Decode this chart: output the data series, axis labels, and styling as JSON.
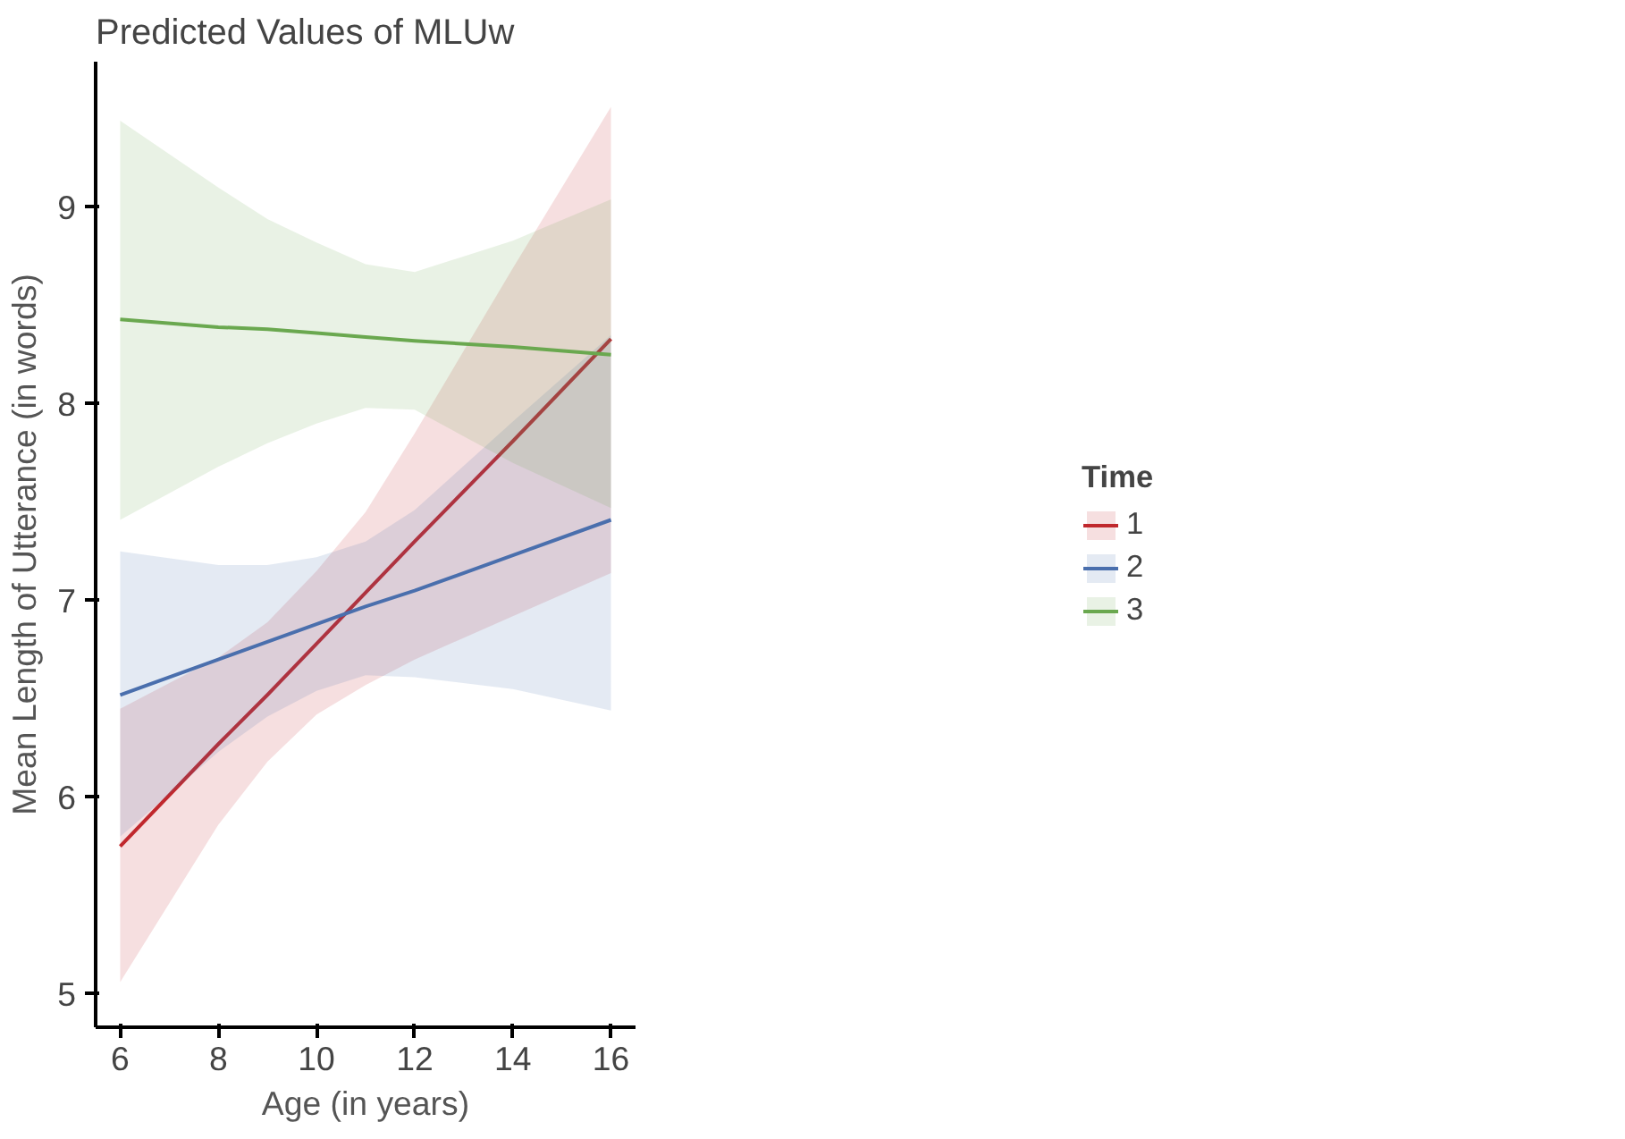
{
  "chart_data": {
    "type": "line",
    "title": "Predicted Values of MLUw",
    "xlabel": "Age (in years)",
    "ylabel": "Mean Length of Utterance (in words)",
    "legend_title": "Time",
    "legend": "right",
    "grid": false,
    "xlim": [
      5.5,
      16.5
    ],
    "ylim": [
      4.83,
      9.74
    ],
    "xticks": [
      6,
      8,
      10,
      12,
      14,
      16
    ],
    "yticks": [
      5,
      6,
      7,
      8,
      9
    ],
    "x": [
      6,
      8,
      9,
      10,
      11,
      12,
      14,
      16
    ],
    "series": [
      {
        "name": "1",
        "color": "#c0282d",
        "values": [
          5.75,
          6.27,
          6.52,
          6.78,
          7.04,
          7.3,
          7.81,
          8.33
        ],
        "lower": [
          5.06,
          5.86,
          6.18,
          6.42,
          6.57,
          6.7,
          6.92,
          7.14
        ],
        "upper": [
          6.45,
          6.71,
          6.89,
          7.15,
          7.45,
          7.85,
          8.69,
          9.51
        ]
      },
      {
        "name": "2",
        "color": "#4a6fad",
        "values": [
          6.52,
          6.7,
          6.79,
          6.88,
          6.97,
          7.05,
          7.23,
          7.41
        ],
        "lower": [
          5.8,
          6.23,
          6.41,
          6.54,
          6.62,
          6.61,
          6.55,
          6.44
        ],
        "upper": [
          7.25,
          7.18,
          7.18,
          7.22,
          7.3,
          7.46,
          7.91,
          8.35
        ]
      },
      {
        "name": "3",
        "color": "#6aa84f",
        "values": [
          8.43,
          8.39,
          8.38,
          8.36,
          8.34,
          8.32,
          8.29,
          8.25
        ],
        "lower": [
          7.41,
          7.68,
          7.8,
          7.9,
          7.98,
          7.97,
          7.7,
          7.47
        ],
        "upper": [
          9.44,
          9.1,
          8.94,
          8.82,
          8.71,
          8.67,
          8.83,
          9.04
        ]
      }
    ]
  }
}
